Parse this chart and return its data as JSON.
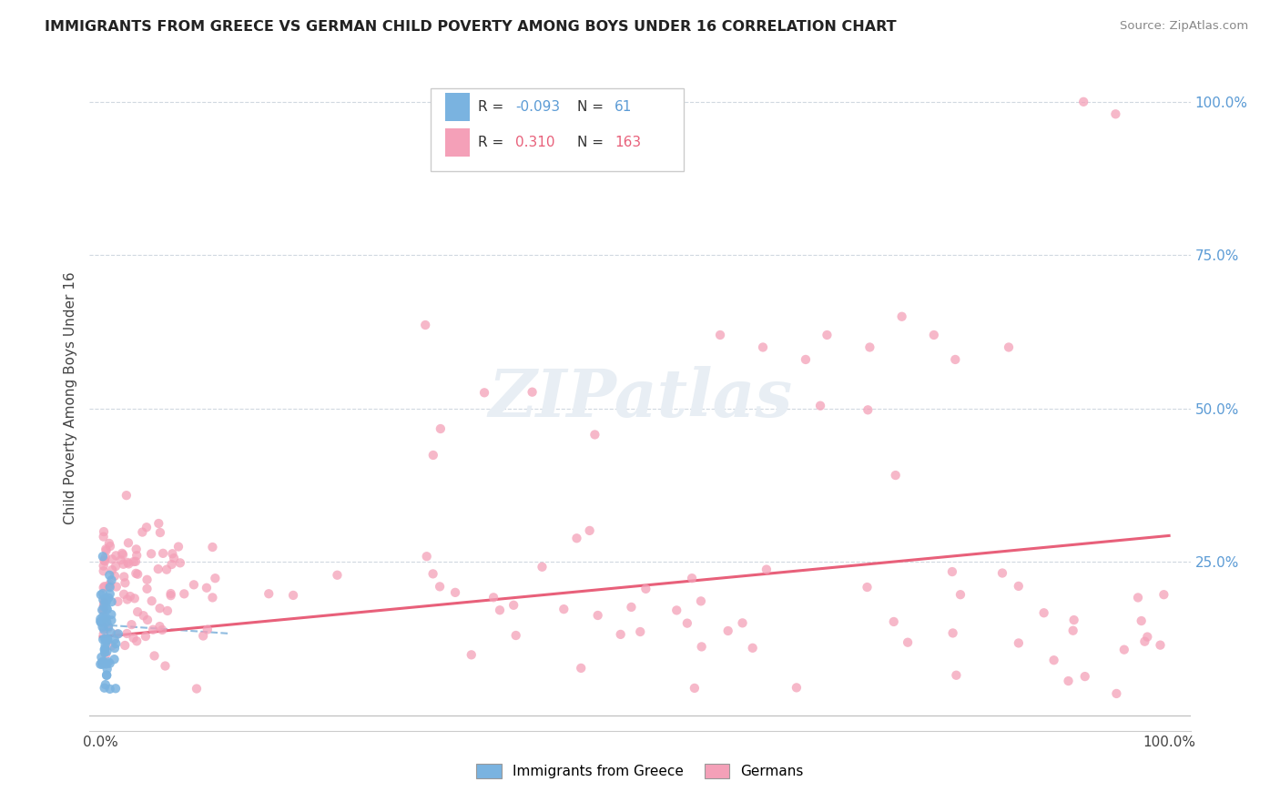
{
  "title": "IMMIGRANTS FROM GREECE VS GERMAN CHILD POVERTY AMONG BOYS UNDER 16 CORRELATION CHART",
  "source": "Source: ZipAtlas.com",
  "ylabel": "Child Poverty Among Boys Under 16",
  "color_blue": "#7ab3e0",
  "color_pink": "#f4a0b8",
  "color_trendline_blue": "#90bce0",
  "color_trendline_pink": "#e8607a",
  "watermark_color": "#e8eef4",
  "watermark_text": "ZIPatlas",
  "legend_R1": "-0.093",
  "legend_N1": "61",
  "legend_R2": "0.310",
  "legend_N2": "163"
}
